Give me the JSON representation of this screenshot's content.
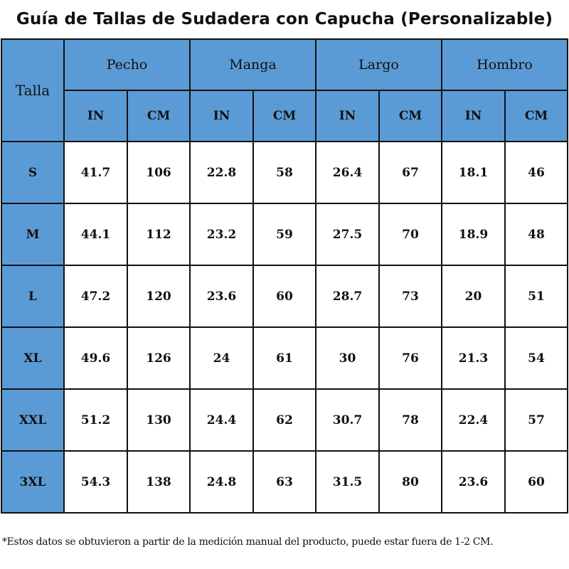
{
  "title": "Guía de Tallas de Sudadera con Capucha (Personalizable)",
  "table": {
    "size_header": "Talla",
    "groups": [
      "Pecho",
      "Manga",
      "Largo",
      "Hombro"
    ],
    "units": [
      "IN",
      "CM",
      "IN",
      "CM",
      "IN",
      "CM",
      "IN",
      "CM"
    ],
    "rows": [
      {
        "size": "S",
        "values": [
          "41.7",
          "106",
          "22.8",
          "58",
          "26.4",
          "67",
          "18.1",
          "46"
        ]
      },
      {
        "size": "M",
        "values": [
          "44.1",
          "112",
          "23.2",
          "59",
          "27.5",
          "70",
          "18.9",
          "48"
        ]
      },
      {
        "size": "L",
        "values": [
          "47.2",
          "120",
          "23.6",
          "60",
          "28.7",
          "73",
          "20",
          "51"
        ]
      },
      {
        "size": "XL",
        "values": [
          "49.6",
          "126",
          "24",
          "61",
          "30",
          "76",
          "21.3",
          "54"
        ]
      },
      {
        "size": "XXL",
        "values": [
          "51.2",
          "130",
          "24.4",
          "62",
          "30.7",
          "78",
          "22.4",
          "57"
        ]
      },
      {
        "size": "3XL",
        "values": [
          "54.3",
          "138",
          "24.8",
          "63",
          "31.5",
          "80",
          "23.6",
          "60"
        ]
      }
    ]
  },
  "footnote": "*Estos datos se obtuvieron a partir de la medición manual del producto, puede estar fuera de 1-2 CM."
}
